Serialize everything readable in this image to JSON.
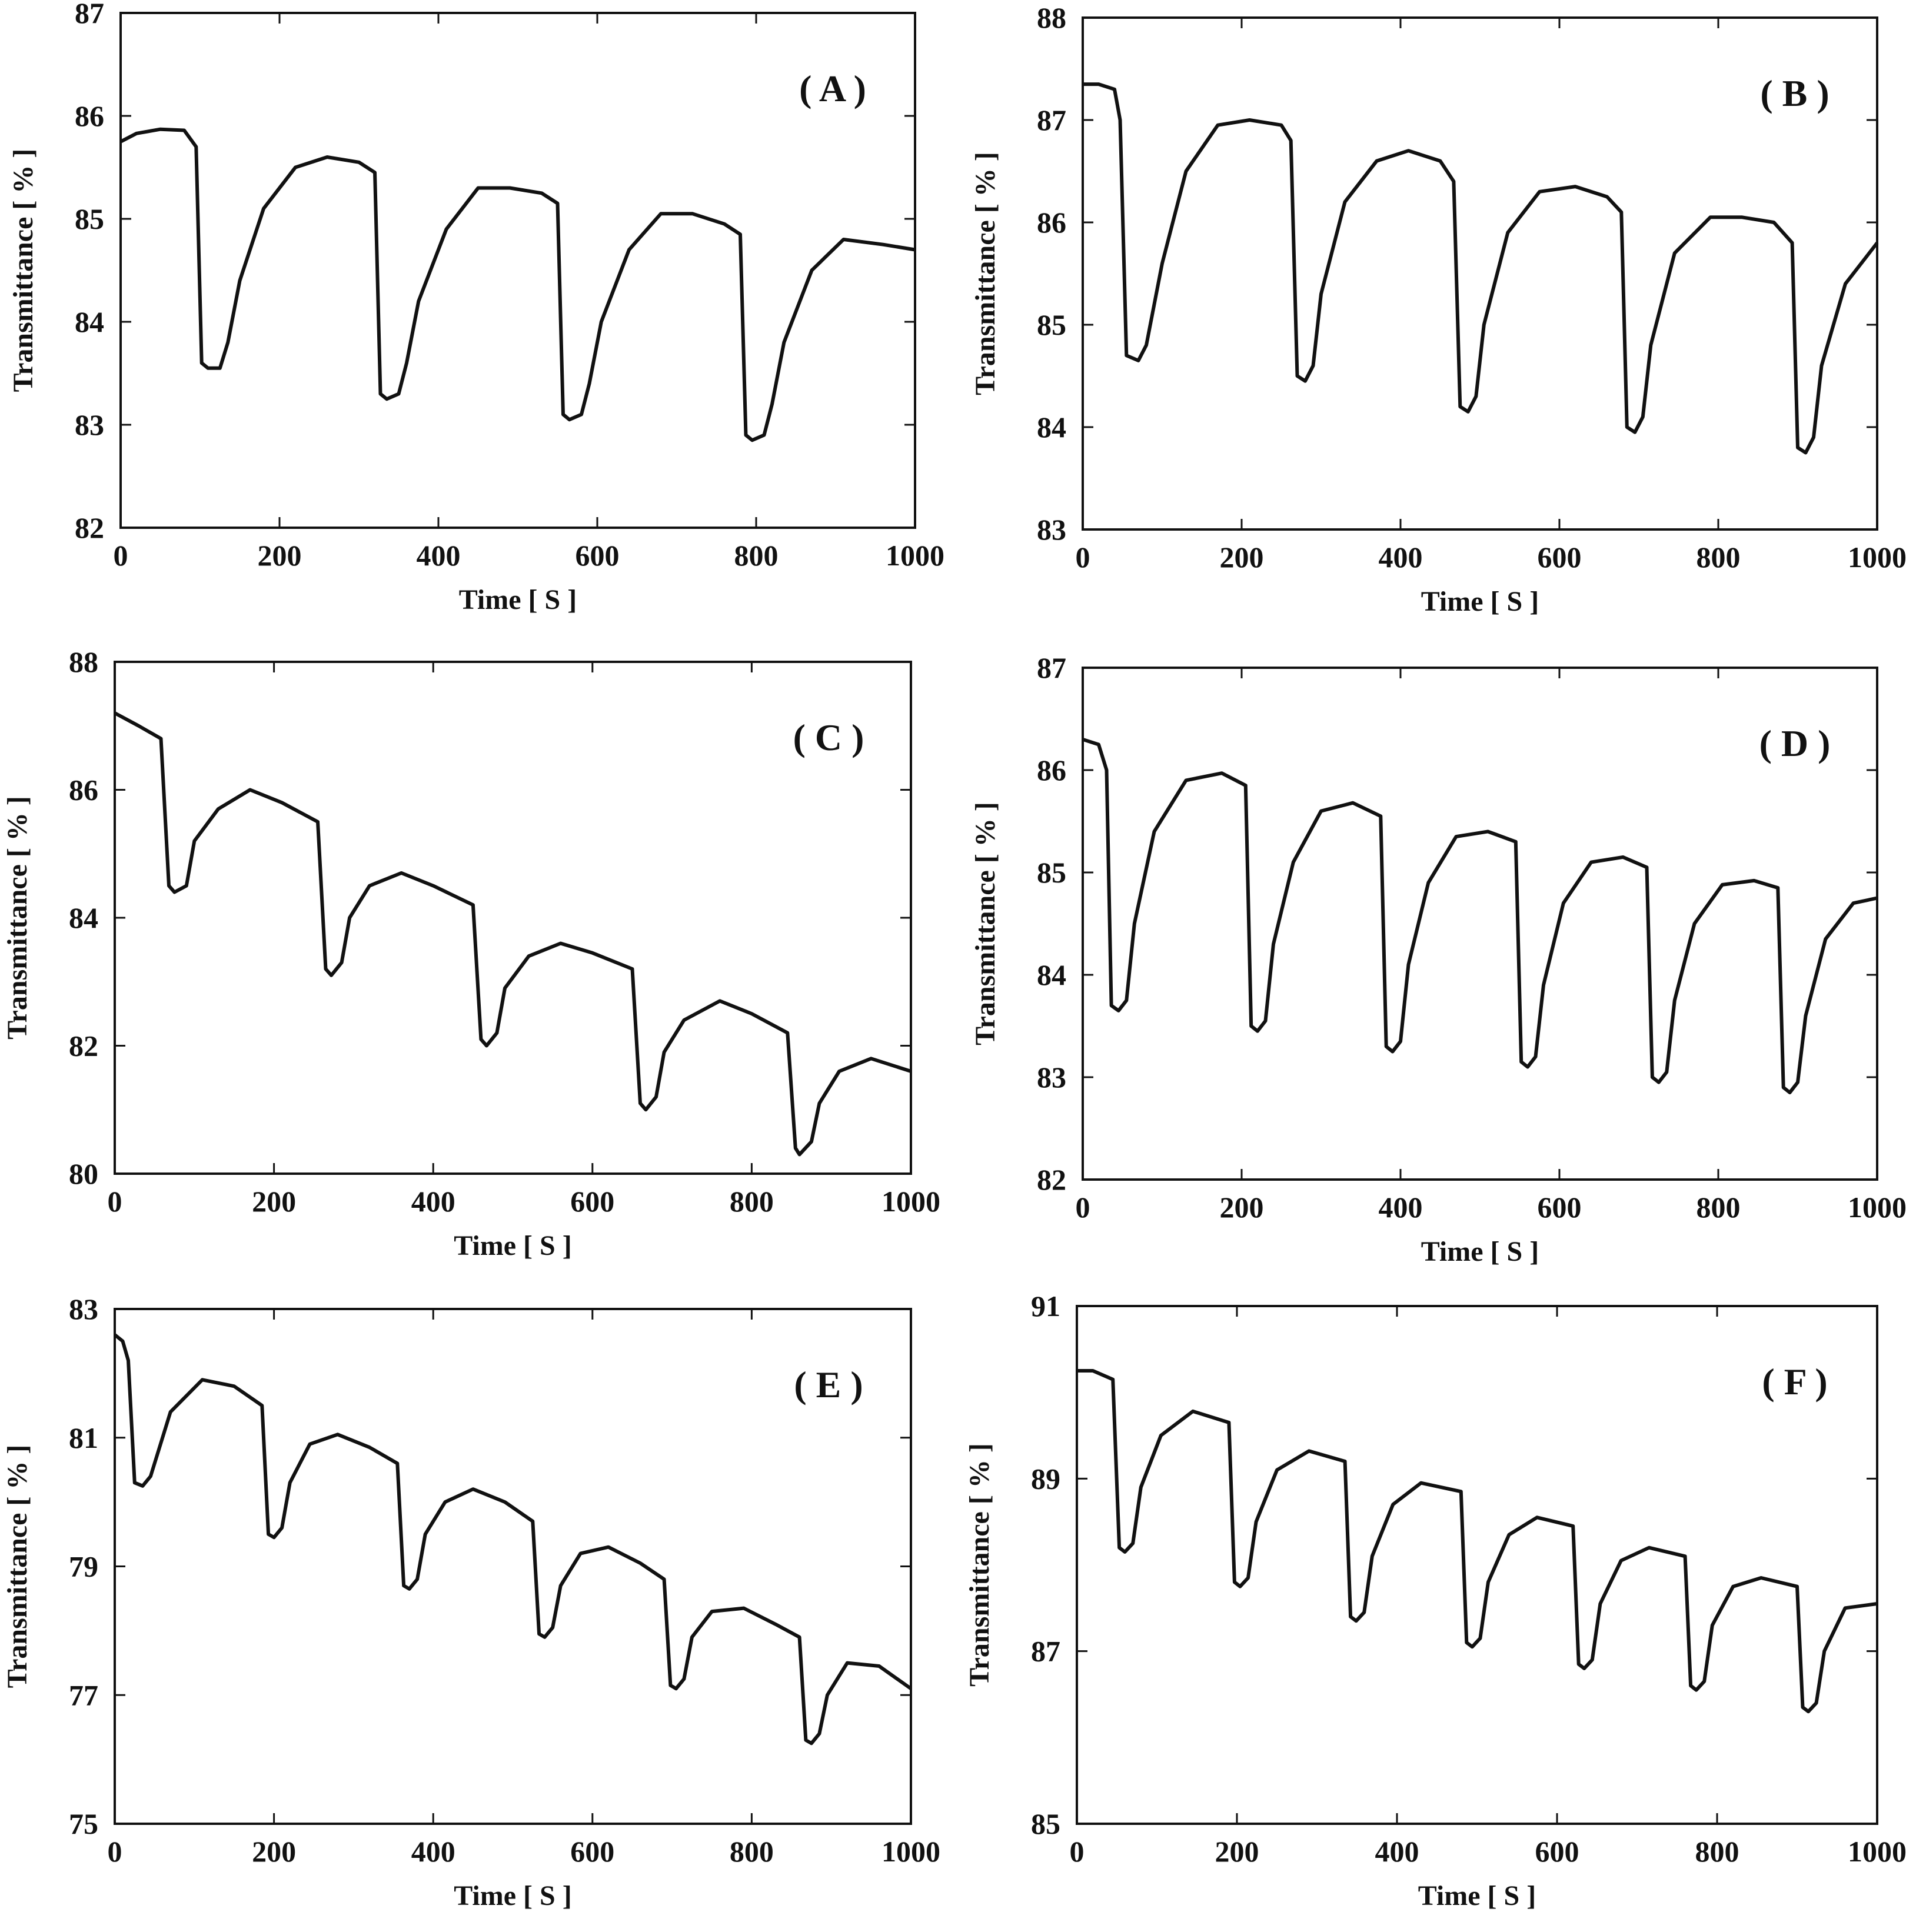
{
  "figure": {
    "background": "#ffffff",
    "line_color": "#111111"
  },
  "chart_data": [
    {
      "type": "line",
      "panel": "( A )",
      "xlabel": "Time [ S ]",
      "ylabel": "Transmittance [ % ]",
      "xlim": [
        0,
        1000
      ],
      "ylim": [
        82,
        87
      ],
      "xticks": [
        0,
        200,
        400,
        600,
        800,
        1000
      ],
      "yticks": [
        82,
        83,
        84,
        85,
        86,
        87
      ],
      "series": [
        {
          "name": "transmittance",
          "x": [
            0,
            20,
            50,
            80,
            95,
            102,
            110,
            125,
            135,
            150,
            180,
            220,
            260,
            300,
            320,
            327,
            335,
            350,
            360,
            375,
            410,
            450,
            490,
            530,
            550,
            557,
            565,
            580,
            590,
            605,
            640,
            680,
            720,
            760,
            780,
            787,
            795,
            810,
            820,
            835,
            870,
            910,
            960,
            1000
          ],
          "y": [
            85.75,
            85.83,
            85.87,
            85.86,
            85.7,
            83.6,
            83.55,
            83.55,
            83.8,
            84.4,
            85.1,
            85.5,
            85.6,
            85.55,
            85.45,
            83.3,
            83.25,
            83.3,
            83.6,
            84.2,
            84.9,
            85.3,
            85.3,
            85.25,
            85.15,
            83.1,
            83.05,
            83.1,
            83.4,
            84.0,
            84.7,
            85.05,
            85.05,
            84.95,
            84.85,
            82.9,
            82.85,
            82.9,
            83.2,
            83.8,
            84.5,
            84.8,
            84.75,
            84.7
          ]
        }
      ]
    },
    {
      "type": "line",
      "panel": "( B )",
      "xlabel": "Time [ S ]",
      "ylabel": "Transmittance [ % ]",
      "xlim": [
        0,
        1000
      ],
      "ylim": [
        83,
        88
      ],
      "xticks": [
        0,
        200,
        400,
        600,
        800,
        1000
      ],
      "yticks": [
        83,
        84,
        85,
        86,
        87,
        88
      ],
      "series": [
        {
          "name": "transmittance",
          "x": [
            0,
            20,
            40,
            47,
            55,
            70,
            80,
            100,
            130,
            170,
            210,
            250,
            262,
            270,
            280,
            290,
            300,
            330,
            370,
            410,
            450,
            467,
            475,
            485,
            495,
            505,
            535,
            575,
            620,
            660,
            678,
            685,
            695,
            705,
            715,
            745,
            790,
            830,
            870,
            893,
            900,
            910,
            920,
            930,
            960,
            1000
          ],
          "y": [
            87.35,
            87.35,
            87.3,
            87.0,
            84.7,
            84.65,
            84.8,
            85.6,
            86.5,
            86.95,
            87.0,
            86.95,
            86.8,
            84.5,
            84.45,
            84.6,
            85.3,
            86.2,
            86.6,
            86.7,
            86.6,
            86.4,
            84.2,
            84.15,
            84.3,
            85.0,
            85.9,
            86.3,
            86.35,
            86.25,
            86.1,
            84.0,
            83.95,
            84.1,
            84.8,
            85.7,
            86.05,
            86.05,
            86.0,
            85.8,
            83.8,
            83.75,
            83.9,
            84.6,
            85.4,
            85.8
          ]
        }
      ]
    },
    {
      "type": "line",
      "panel": "( C )",
      "xlabel": "Time [ S ]",
      "ylabel": "Transmittance [ % ]",
      "xlim": [
        0,
        1000
      ],
      "ylim": [
        80,
        88
      ],
      "xticks": [
        0,
        200,
        400,
        600,
        800,
        1000
      ],
      "yticks": [
        80,
        82,
        84,
        86,
        88
      ],
      "series": [
        {
          "name": "transmittance",
          "x": [
            0,
            30,
            58,
            68,
            75,
            90,
            100,
            130,
            170,
            210,
            255,
            265,
            272,
            285,
            295,
            320,
            360,
            400,
            450,
            460,
            467,
            480,
            490,
            520,
            560,
            600,
            650,
            660,
            667,
            680,
            690,
            715,
            760,
            800,
            845,
            855,
            860,
            875,
            885,
            910,
            950,
            1000
          ],
          "y": [
            87.2,
            87.0,
            86.8,
            84.5,
            84.4,
            84.5,
            85.2,
            85.7,
            86.0,
            85.8,
            85.5,
            83.2,
            83.1,
            83.3,
            84.0,
            84.5,
            84.7,
            84.5,
            84.2,
            82.1,
            82.0,
            82.2,
            82.9,
            83.4,
            83.6,
            83.45,
            83.2,
            81.1,
            81.0,
            81.2,
            81.9,
            82.4,
            82.7,
            82.5,
            82.2,
            80.4,
            80.3,
            80.5,
            81.1,
            81.6,
            81.8,
            81.6
          ]
        }
      ]
    },
    {
      "type": "line",
      "panel": "( D )",
      "xlabel": "Time [ S ]",
      "ylabel": "Transmittance [ % ]",
      "xlim": [
        0,
        1000
      ],
      "ylim": [
        82,
        87
      ],
      "xticks": [
        0,
        200,
        400,
        600,
        800,
        1000
      ],
      "yticks": [
        82,
        83,
        84,
        85,
        86,
        87
      ],
      "series": [
        {
          "name": "transmittance",
          "x": [
            0,
            20,
            30,
            36,
            45,
            55,
            65,
            90,
            130,
            175,
            205,
            212,
            220,
            230,
            240,
            265,
            300,
            340,
            375,
            382,
            390,
            400,
            410,
            435,
            470,
            510,
            545,
            552,
            560,
            570,
            580,
            605,
            640,
            680,
            710,
            717,
            725,
            735,
            745,
            770,
            805,
            845,
            875,
            882,
            890,
            900,
            910,
            935,
            970,
            1000
          ],
          "y": [
            86.3,
            86.25,
            86.0,
            83.7,
            83.65,
            83.75,
            84.5,
            85.4,
            85.9,
            85.97,
            85.85,
            83.5,
            83.45,
            83.55,
            84.3,
            85.1,
            85.6,
            85.68,
            85.55,
            83.3,
            83.25,
            83.35,
            84.1,
            84.9,
            85.35,
            85.4,
            85.3,
            83.15,
            83.1,
            83.2,
            83.9,
            84.7,
            85.1,
            85.15,
            85.05,
            83.0,
            82.95,
            83.05,
            83.75,
            84.5,
            84.88,
            84.92,
            84.85,
            82.9,
            82.85,
            82.95,
            83.6,
            84.35,
            84.7,
            84.75
          ]
        }
      ]
    },
    {
      "type": "line",
      "panel": "( E )",
      "xlabel": "Time [ S ]",
      "ylabel": "Transmittance [ % ]",
      "xlim": [
        0,
        1000
      ],
      "ylim": [
        75,
        83
      ],
      "xticks": [
        0,
        200,
        400,
        600,
        800,
        1000
      ],
      "yticks": [
        75,
        77,
        79,
        81,
        83
      ],
      "series": [
        {
          "name": "transmittance",
          "x": [
            0,
            10,
            17,
            25,
            35,
            45,
            70,
            110,
            150,
            185,
            193,
            200,
            210,
            220,
            245,
            280,
            320,
            355,
            363,
            370,
            380,
            390,
            415,
            450,
            490,
            525,
            533,
            540,
            550,
            560,
            585,
            620,
            660,
            690,
            698,
            705,
            715,
            725,
            750,
            790,
            830,
            860,
            868,
            875,
            885,
            895,
            920,
            960,
            1000
          ],
          "y": [
            82.6,
            82.5,
            82.2,
            80.3,
            80.25,
            80.4,
            81.4,
            81.9,
            81.8,
            81.5,
            79.5,
            79.45,
            79.6,
            80.3,
            80.9,
            81.05,
            80.85,
            80.6,
            78.7,
            78.65,
            78.8,
            79.5,
            80.0,
            80.2,
            80.0,
            79.7,
            77.95,
            77.9,
            78.05,
            78.7,
            79.2,
            79.3,
            79.05,
            78.8,
            77.15,
            77.1,
            77.25,
            77.9,
            78.3,
            78.35,
            78.1,
            77.9,
            76.3,
            76.25,
            76.4,
            77.0,
            77.5,
            77.45,
            77.1
          ]
        }
      ]
    },
    {
      "type": "line",
      "panel": "( F )",
      "xlabel": "Time [ S ]",
      "ylabel": "Transmittance [ % ]",
      "xlim": [
        0,
        1000
      ],
      "ylim": [
        85,
        91
      ],
      "xticks": [
        0,
        200,
        400,
        600,
        800,
        1000
      ],
      "yticks": [
        85,
        87,
        89,
        91
      ],
      "series": [
        {
          "name": "transmittance",
          "x": [
            0,
            20,
            45,
            53,
            60,
            70,
            80,
            105,
            145,
            190,
            197,
            204,
            214,
            224,
            250,
            290,
            335,
            342,
            349,
            359,
            369,
            395,
            430,
            480,
            487,
            494,
            504,
            514,
            540,
            575,
            620,
            627,
            634,
            644,
            654,
            680,
            715,
            760,
            767,
            774,
            784,
            794,
            820,
            855,
            900,
            907,
            914,
            924,
            934,
            960,
            1000
          ],
          "y": [
            90.25,
            90.25,
            90.15,
            88.2,
            88.15,
            88.25,
            88.9,
            89.5,
            89.78,
            89.65,
            87.8,
            87.75,
            87.85,
            88.5,
            89.1,
            89.32,
            89.2,
            87.4,
            87.35,
            87.45,
            88.1,
            88.7,
            88.95,
            88.85,
            87.1,
            87.05,
            87.15,
            87.8,
            88.35,
            88.55,
            88.45,
            86.85,
            86.8,
            86.9,
            87.55,
            88.05,
            88.2,
            88.1,
            86.6,
            86.55,
            86.65,
            87.3,
            87.75,
            87.85,
            87.75,
            86.35,
            86.3,
            86.4,
            87.0,
            87.5,
            87.55
          ]
        }
      ]
    }
  ]
}
